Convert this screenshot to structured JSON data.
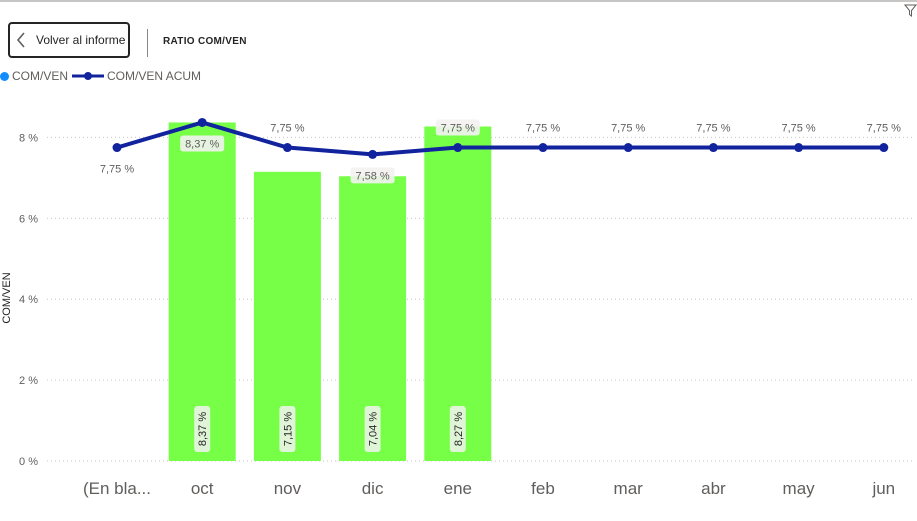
{
  "header": {
    "back_label": "Volver al informe",
    "page_title": "RATIO COM/VEN"
  },
  "legend": {
    "items": [
      {
        "label": "COM/VEN",
        "color": "#118DFF",
        "kind": "dot"
      },
      {
        "label": "COM/VEN ACUM",
        "color": "#12239E",
        "kind": "line"
      }
    ]
  },
  "icons": {
    "back": "chevron-left-icon",
    "filter": "filter-icon"
  },
  "chart_data": {
    "type": "bar",
    "categories": [
      "(En bla...",
      "oct",
      "nov",
      "dic",
      "ene",
      "feb",
      "mar",
      "abr",
      "may",
      "jun"
    ],
    "ylabel": "COM/VEN",
    "xlabel": "",
    "ylim": [
      0,
      8.8
    ],
    "yticks": [
      0,
      2,
      4,
      6,
      8
    ],
    "ytick_labels": [
      "0 %",
      "2 %",
      "4 %",
      "6 %",
      "8 %"
    ],
    "grid": true,
    "series": [
      {
        "name": "COM/VEN",
        "type": "bar",
        "color": "#76FF46",
        "values": [
          null,
          8.37,
          7.15,
          7.04,
          8.27,
          null,
          null,
          null,
          null,
          null
        ],
        "labels": [
          "",
          "8,37 %",
          "7,15 %",
          "7,04 %",
          "8,27 %",
          "",
          "",
          "",
          "",
          ""
        ]
      },
      {
        "name": "COM/VEN ACUM",
        "type": "line",
        "color": "#12239E",
        "values": [
          7.75,
          8.37,
          7.75,
          7.58,
          7.75,
          7.75,
          7.75,
          7.75,
          7.75,
          7.75
        ],
        "labels": [
          "7,75 %",
          "8,37 %",
          "7,75 %",
          "7,58 %",
          "7,75 %",
          "7,75 %",
          "7,75 %",
          "7,75 %",
          "7,75 %",
          "7,75 %"
        ]
      }
    ]
  }
}
